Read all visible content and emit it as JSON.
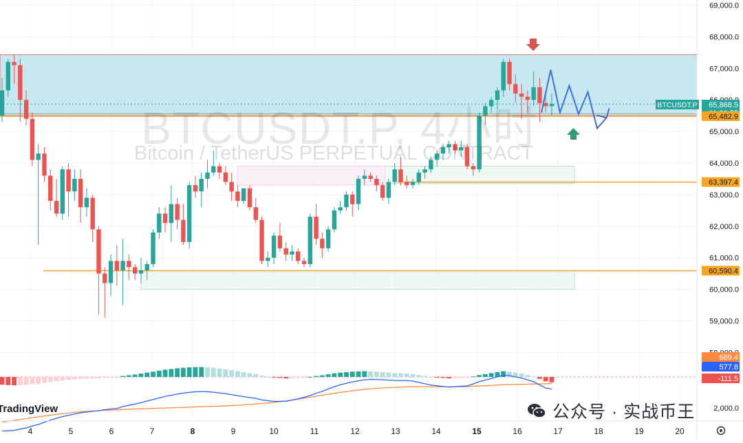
{
  "watermark": {
    "symbol_title": "BTCUSDT.P, 4小时",
    "description": "Bitcoin / TetherUS PERPETUAL CONTRACT"
  },
  "branding": {
    "tradingview": "TradingView",
    "credit": "公众号 · 实战币王",
    "credit_icon": "wechat-icon"
  },
  "colors": {
    "up": "#26a69a",
    "down": "#ef5350",
    "zone_fill": "#c6e9f1",
    "zone_border": "#e57373",
    "level_line": "#f2a33a",
    "projection": "#3b6fe0",
    "macd_line": "#2962ff",
    "signal_line": "#ff8a3d"
  },
  "chart_data": {
    "type": "candlestick",
    "symbol": "BTCUSDT.P",
    "timeframe": "4小时",
    "x_axis": {
      "labels": [
        "4",
        "5",
        "6",
        "7",
        "8",
        "9",
        "10",
        "11",
        "12",
        "13",
        "14",
        "15",
        "16",
        "17",
        "18",
        "19",
        "20"
      ],
      "bold": [
        "8",
        "15"
      ]
    },
    "y_axis": {
      "labels": [
        "69,000.0",
        "68,000.0",
        "67,000.0",
        "66,000.0",
        "65,000.0",
        "64,000.0",
        "63,000.0",
        "62,000.0",
        "61,000.0",
        "60,000.0",
        "59,000.0",
        "58,000.0"
      ],
      "ylim": [
        58000,
        69200
      ]
    },
    "candles": [
      [
        65500,
        66700,
        65300,
        66300
      ],
      [
        66300,
        67300,
        66100,
        67200
      ],
      [
        67200,
        67450,
        66500,
        67100
      ],
      [
        67100,
        67300,
        65300,
        66000
      ],
      [
        66000,
        66300,
        65200,
        65400
      ],
      [
        65400,
        65600,
        63900,
        64100
      ],
      [
        64100,
        64600,
        61400,
        64300
      ],
      [
        64300,
        64500,
        63400,
        63600
      ],
      [
        63600,
        63800,
        62500,
        62800
      ],
      [
        62800,
        63500,
        62300,
        62400
      ],
      [
        62400,
        63900,
        62200,
        63800
      ],
      [
        63800,
        64000,
        62300,
        63100
      ],
      [
        63100,
        63800,
        62800,
        63500
      ],
      [
        63500,
        63800,
        62100,
        62600
      ],
      [
        62600,
        63200,
        62300,
        62900
      ],
      [
        62900,
        63000,
        61500,
        61900
      ],
      [
        61900,
        62000,
        59200,
        60500
      ],
      [
        60500,
        60700,
        59100,
        60200
      ],
      [
        60200,
        61100,
        59800,
        60900
      ],
      [
        60900,
        61400,
        60100,
        60600
      ],
      [
        60600,
        61600,
        59500,
        60900
      ],
      [
        60900,
        61100,
        60300,
        60700
      ],
      [
        60700,
        60800,
        60300,
        60500
      ],
      [
        60500,
        61000,
        60200,
        60600
      ],
      [
        60600,
        60900,
        60300,
        60800
      ],
      [
        60800,
        61900,
        60700,
        61800
      ],
      [
        61800,
        62600,
        61600,
        62400
      ],
      [
        62400,
        62600,
        61800,
        62100
      ],
      [
        62100,
        63300,
        61500,
        62700
      ],
      [
        62700,
        62900,
        61900,
        62200
      ],
      [
        62200,
        62700,
        61400,
        61500
      ],
      [
        61500,
        63400,
        61300,
        63300
      ],
      [
        63300,
        63600,
        62900,
        63100
      ],
      [
        63100,
        63700,
        62600,
        63500
      ],
      [
        63500,
        64100,
        63200,
        63700
      ],
      [
        63700,
        64400,
        63600,
        63900
      ],
      [
        63900,
        64000,
        63500,
        63700
      ],
      [
        63700,
        63900,
        63300,
        63400
      ],
      [
        63400,
        63700,
        62800,
        63100
      ],
      [
        63100,
        63300,
        62600,
        62800
      ],
      [
        62800,
        63200,
        62700,
        63200
      ],
      [
        63200,
        63300,
        62500,
        62600
      ],
      [
        62600,
        62900,
        62100,
        62200
      ],
      [
        62200,
        62300,
        60800,
        60900
      ],
      [
        60900,
        61200,
        60700,
        61000
      ],
      [
        61000,
        61800,
        60800,
        61700
      ],
      [
        61700,
        62100,
        61200,
        61300
      ],
      [
        61300,
        61500,
        60900,
        61100
      ],
      [
        61100,
        61400,
        60900,
        61200
      ],
      [
        61200,
        61300,
        60800,
        60900
      ],
      [
        60900,
        61000,
        60700,
        60800
      ],
      [
        60800,
        62400,
        60700,
        62300
      ],
      [
        62300,
        62700,
        61400,
        61600
      ],
      [
        61600,
        61800,
        61000,
        61300
      ],
      [
        61300,
        62000,
        61200,
        61900
      ],
      [
        61900,
        62600,
        61800,
        62500
      ],
      [
        62500,
        62800,
        62400,
        62600
      ],
      [
        62600,
        63100,
        62500,
        63000
      ],
      [
        63000,
        63100,
        62300,
        62700
      ],
      [
        62700,
        63600,
        62500,
        63500
      ],
      [
        63500,
        63800,
        63300,
        63600
      ],
      [
        63600,
        63700,
        63400,
        63500
      ],
      [
        63500,
        63600,
        63100,
        63300
      ],
      [
        63300,
        63400,
        62800,
        62900
      ],
      [
        62900,
        63500,
        62700,
        63400
      ],
      [
        63400,
        64000,
        63300,
        63800
      ],
      [
        63800,
        64200,
        63300,
        63400
      ],
      [
        63400,
        63600,
        63200,
        63300
      ],
      [
        63300,
        63500,
        63200,
        63400
      ],
      [
        63400,
        63800,
        63300,
        63700
      ],
      [
        63700,
        63900,
        63500,
        63800
      ],
      [
        63800,
        64200,
        63700,
        64100
      ],
      [
        64100,
        64400,
        63900,
        64300
      ],
      [
        64300,
        64600,
        64100,
        64500
      ],
      [
        64500,
        64700,
        64300,
        64600
      ],
      [
        64600,
        64700,
        64300,
        64400
      ],
      [
        64400,
        64700,
        64200,
        64500
      ],
      [
        64500,
        64600,
        63800,
        63900
      ],
      [
        63900,
        64000,
        63600,
        63800
      ],
      [
        63800,
        65600,
        63700,
        65500
      ],
      [
        65500,
        65900,
        65200,
        65800
      ],
      [
        65800,
        66100,
        65600,
        66000
      ],
      [
        66000,
        66400,
        65700,
        66300
      ],
      [
        66300,
        67300,
        66100,
        67200
      ],
      [
        67200,
        67300,
        66300,
        66500
      ],
      [
        66500,
        66800,
        65900,
        66200
      ],
      [
        66200,
        66500,
        65400,
        66100
      ],
      [
        66100,
        66300,
        65600,
        66000
      ],
      [
        66000,
        66900,
        65800,
        66400
      ],
      [
        66400,
        66700,
        65300,
        65900
      ],
      [
        65900,
        66200,
        65600,
        65800
      ],
      [
        65800,
        66200,
        65500,
        65870
      ]
    ],
    "resistance_zone": [
      65500,
      67430
    ],
    "levels": [
      {
        "price": 65482.9,
        "label": "65,482.9"
      },
      {
        "price": 63397.4,
        "label": "63,397.4"
      },
      {
        "price": 60590.4,
        "label": "60,590.4"
      }
    ],
    "support_boxes": [
      {
        "from": 63350,
        "to": 63900,
        "color": "#e0f2e6"
      },
      {
        "from": 60000,
        "to": 60600,
        "color": "#e0f2e6"
      }
    ],
    "pink_box": [
      63300,
      63900
    ],
    "current_price": {
      "label": "BTCUSDT.P",
      "price": "65,868.5",
      "countdown": "01:00:55",
      "value": 65868.5
    },
    "projection_path": [
      [
        65600,
        0
      ],
      [
        66950,
        1
      ],
      [
        65600,
        2
      ],
      [
        66450,
        3
      ],
      [
        65550,
        4
      ],
      [
        66250,
        5
      ],
      [
        65100,
        6
      ],
      [
        65430,
        7
      ]
    ],
    "markers": [
      {
        "type": "down-arrow",
        "position": "above-high",
        "color": "#d9534f"
      },
      {
        "type": "up-arrow",
        "position": "below",
        "color": "#2e9e6e"
      }
    ],
    "macd": {
      "labels": {
        "signal": "689.4",
        "macd": "577.8",
        "histogram": "-111.5"
      },
      "right_axis_label": "2,000.0",
      "histogram": [
        -160,
        -170,
        -175,
        -170,
        -165,
        -150,
        -140,
        -120,
        -100,
        -85,
        -70,
        -60,
        -50,
        -40,
        -35,
        -30,
        -25,
        -15,
        -10,
        -5,
        20,
        35,
        50,
        70,
        90,
        110,
        130,
        150,
        165,
        180,
        190,
        200,
        205,
        205,
        200,
        190,
        175,
        160,
        140,
        120,
        100,
        80,
        60,
        30,
        10,
        -10,
        -20,
        -30,
        -25,
        -20,
        -10,
        0,
        20,
        35,
        55,
        75,
        90,
        100,
        110,
        115,
        120,
        118,
        110,
        100,
        90,
        80,
        75,
        70,
        60,
        40,
        20,
        0,
        -10,
        -20,
        -30,
        -25,
        -20,
        -15,
        10,
        40,
        60,
        80,
        100,
        120,
        110,
        90,
        70,
        40,
        10,
        -40,
        -90,
        -111.5
      ]
    }
  }
}
